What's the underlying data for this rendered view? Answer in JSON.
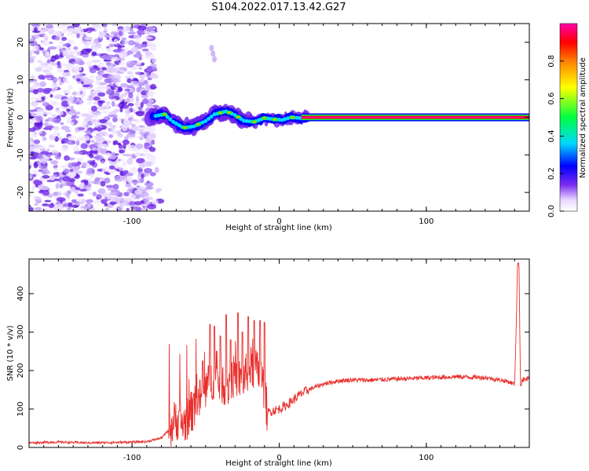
{
  "title": "S104.2022.017.13.42.G27",
  "chart_data": [
    {
      "type": "heatmap",
      "xlabel": "Height of straight line (km)",
      "ylabel": "Frequency (Hz)",
      "xlim": [
        -170,
        170
      ],
      "ylim": [
        -25,
        25
      ],
      "xticks": [
        -100,
        0,
        100
      ],
      "yticks": [
        -20,
        -10,
        0,
        10,
        20
      ],
      "colorbar": {
        "label": "Normalized spectral amplitude",
        "range": [
          0,
          1
        ],
        "ticks": [
          0.0,
          0.2,
          0.4,
          0.6,
          0.8
        ],
        "colors": [
          "#ffffff",
          "#7b2cf0",
          "#0000ff",
          "#00d8ff",
          "#00ff40",
          "#ffff00",
          "#ff0000",
          "#ff00aa"
        ]
      },
      "noise_region": {
        "x_range": [
          -170,
          -85
        ],
        "freq_range": [
          -25,
          25
        ],
        "color": "#7b2cf0"
      },
      "signal_track": [
        {
          "x": -85,
          "f": 0.3
        },
        {
          "x": -78,
          "f": 0.8
        },
        {
          "x": -72,
          "f": -1.2
        },
        {
          "x": -65,
          "f": -2.8
        },
        {
          "x": -58,
          "f": -2.4
        },
        {
          "x": -50,
          "f": -1.0
        },
        {
          "x": -44,
          "f": 0.8
        },
        {
          "x": -36,
          "f": 1.6
        },
        {
          "x": -30,
          "f": 0.6
        },
        {
          "x": -24,
          "f": -0.9
        },
        {
          "x": -17,
          "f": -1.2
        },
        {
          "x": -10,
          "f": -0.2
        },
        {
          "x": -4,
          "f": -0.5
        },
        {
          "x": 2,
          "f": -0.7
        },
        {
          "x": 8,
          "f": 0.0
        },
        {
          "x": 15,
          "f": -0.2
        },
        {
          "x": 25,
          "f": 0.0
        },
        {
          "x": 170,
          "f": 0.0
        }
      ]
    },
    {
      "type": "line",
      "xlabel": "Height of straight line (km)",
      "ylabel": "SNR (10 * v/v)",
      "xlim": [
        -170,
        170
      ],
      "ylim": [
        0,
        490
      ],
      "xticks": [
        -100,
        0,
        100
      ],
      "yticks": [
        0,
        100,
        200,
        300,
        400
      ],
      "color": "#e8302d",
      "x": [
        -170,
        -150,
        -130,
        -110,
        -90,
        -80,
        -75,
        -70,
        -65,
        -60,
        -55,
        -50,
        -45,
        -40,
        -35,
        -30,
        -25,
        -20,
        -15,
        -12,
        -10,
        -8,
        -5,
        0,
        5,
        10,
        15,
        20,
        25,
        30,
        40,
        50,
        60,
        80,
        100,
        120,
        140,
        155,
        160,
        161,
        162,
        163,
        164,
        165,
        170
      ],
      "y": [
        12,
        14,
        12,
        13,
        15,
        25,
        45,
        75,
        60,
        90,
        120,
        150,
        180,
        170,
        160,
        190,
        170,
        210,
        200,
        180,
        150,
        90,
        95,
        100,
        110,
        125,
        140,
        150,
        158,
        165,
        173,
        176,
        175,
        178,
        181,
        184,
        182,
        172,
        165,
        300,
        480,
        470,
        160,
        175,
        180
      ],
      "peaks": [
        {
          "x": -68,
          "y": 95
        },
        {
          "x": -58,
          "y": 140
        },
        {
          "x": -52,
          "y": 225
        },
        {
          "x": -47,
          "y": 320
        },
        {
          "x": -44,
          "y": 315
        },
        {
          "x": -40,
          "y": 290
        },
        {
          "x": -36,
          "y": 345
        },
        {
          "x": -33,
          "y": 280
        },
        {
          "x": -28,
          "y": 350
        },
        {
          "x": -25,
          "y": 300
        },
        {
          "x": -21,
          "y": 340
        },
        {
          "x": -17,
          "y": 330
        },
        {
          "x": -13,
          "y": 330
        },
        {
          "x": -10,
          "y": 325
        }
      ]
    }
  ]
}
